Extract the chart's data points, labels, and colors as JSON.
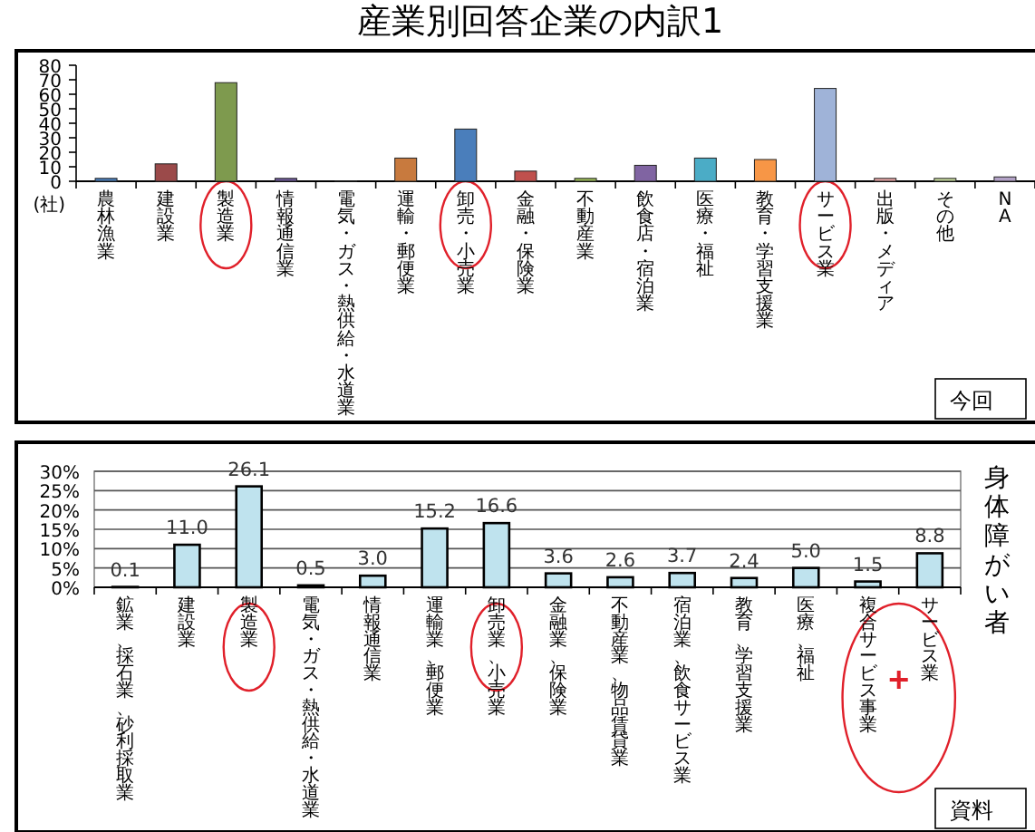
{
  "chart_data": [
    {
      "type": "bar",
      "title": "産業別回答企業の内訳1",
      "ylabel": "(社)",
      "categories": [
        "農林漁業",
        "建設業",
        "製造業",
        "情報通信業",
        "電気・ガス・熱供給・水道業",
        "運輸・郵便業",
        "卸売・小売業",
        "金融・保険業",
        "不動産業",
        "飲食店・宿泊業",
        "医療・福祉",
        "教育・学習支援業",
        "サービス業",
        "出版・メディア",
        "その他",
        "NA"
      ],
      "values": [
        2,
        12,
        68,
        2,
        0,
        16,
        36,
        7,
        2,
        11,
        16,
        15,
        64,
        2,
        2,
        3
      ],
      "colors": [
        "#4a7ebb",
        "#9b4a4a",
        "#7e9a4e",
        "#6e5a99",
        "#3fa3c0",
        "#c87a3e",
        "#4a7ebb",
        "#c0504d",
        "#9bbb59",
        "#8064a2",
        "#4bacc6",
        "#f79646",
        "#9fb3d8",
        "#e6a5a5",
        "#c3d69b",
        "#b3a2c7"
      ],
      "ylim": [
        0,
        80
      ],
      "yticks": [
        0,
        10,
        20,
        30,
        40,
        50,
        60,
        70,
        80
      ],
      "grid": false,
      "legend": false,
      "annotations": [
        "今回"
      ]
    },
    {
      "type": "bar",
      "y2label": "身体障がい者",
      "categories": [
        "鉱業、採石業、砂利採取業",
        "建設業",
        "製造業",
        "電気・ガス・熱供給・水道業",
        "情報通信業",
        "運輸業、郵便業",
        "卸売業、小売業",
        "金融業、保険業",
        "不動産業、物品賃貸業",
        "宿泊業、飲食サービス業",
        "教育、学習支援業",
        "医療、福祉",
        "複合サービス事業",
        "サービス業"
      ],
      "values": [
        0.1,
        11.0,
        26.1,
        0.5,
        3.0,
        15.2,
        16.6,
        3.6,
        2.6,
        3.7,
        2.4,
        5.0,
        1.5,
        8.8
      ],
      "value_labels": [
        "0.1",
        "11.0",
        "26.1",
        "0.5",
        "3.0",
        "15.2",
        "16.6",
        "3.6",
        "2.6",
        "3.7",
        "2.4",
        "5.0",
        "1.5",
        "8.8"
      ],
      "color": "#bfe3ee",
      "ylim": [
        0,
        30
      ],
      "yticks": [
        {
          "value": 0,
          "label": "0%"
        },
        {
          "value": 5,
          "label": "5%"
        },
        {
          "value": 10,
          "label": "10%"
        },
        {
          "value": 15,
          "label": "15%"
        },
        {
          "value": 20,
          "label": "20%"
        },
        {
          "value": 25,
          "label": "25%"
        },
        {
          "value": 30,
          "label": "30%"
        }
      ],
      "grid": "y",
      "legend": false,
      "annotations": [
        "資料"
      ]
    }
  ]
}
